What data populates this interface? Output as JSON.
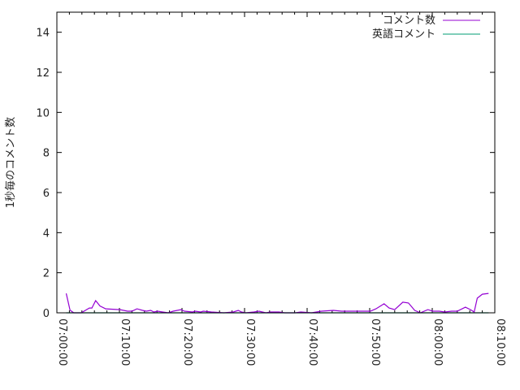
{
  "chart_data": {
    "type": "line",
    "title": "",
    "xlabel": "",
    "ylabel": "1秒毎のコメント数",
    "xlim": [
      "07:00:00",
      "08:10:00"
    ],
    "ylim": [
      0,
      15
    ],
    "x_ticks": [
      "07:00:00",
      "07:10:00",
      "07:20:00",
      "07:30:00",
      "07:40:00",
      "07:50:00",
      "08:00:00",
      "08:10:00"
    ],
    "y_ticks": [
      0,
      2,
      4,
      6,
      8,
      10,
      12,
      14
    ],
    "y_tick_labels": [
      "0",
      "2",
      "4",
      "6",
      "8",
      "10",
      "12",
      "14"
    ],
    "grid": false,
    "legend_position": "top-right",
    "x": [
      "07:01:30",
      "07:02:06",
      "07:02:42",
      "07:03:54",
      "07:05:12",
      "07:05:36",
      "07:06:12",
      "07:06:54",
      "07:07:48",
      "07:10:06",
      "07:11:18",
      "07:12:00",
      "07:12:48",
      "07:13:42",
      "07:14:18",
      "07:15:00",
      "07:15:30",
      "07:16:06",
      "07:16:54",
      "07:17:48",
      "07:18:36",
      "07:19:48",
      "07:20:24",
      "07:21:42",
      "07:22:06",
      "07:23:00",
      "07:23:24",
      "07:24:42",
      "07:26:42",
      "07:28:12",
      "07:29:00",
      "07:29:30",
      "07:30:12",
      "07:31:30",
      "07:32:18",
      "07:33:24",
      "07:34:12",
      "07:35:30",
      "07:36:24",
      "07:38:06",
      "07:39:00",
      "07:40:42",
      "07:42:18",
      "07:44:12",
      "07:45:30",
      "07:46:48",
      "07:47:30",
      "07:50:06",
      "07:51:00",
      "07:52:18",
      "07:53:06",
      "07:54:00",
      "07:55:18",
      "07:56:12",
      "07:57:12",
      "07:58:06",
      "07:59:18",
      "08:00:06",
      "08:01:06",
      "08:02:00",
      "08:03:06",
      "08:04:00",
      "08:05:18",
      "08:06:06",
      "08:06:42",
      "08:07:12",
      "08:08:00",
      "08:09:00"
    ],
    "series": [
      {
        "name": "コメント数",
        "color": "#9400d3",
        "values": [
          0.97,
          0.13,
          0,
          0,
          0.24,
          0.24,
          0.61,
          0.34,
          0.2,
          0.16,
          0.08,
          0.08,
          0.2,
          0.12,
          0.08,
          0.12,
          0.04,
          0.08,
          0.04,
          0,
          0.08,
          0.16,
          0.08,
          0.04,
          0.08,
          0.04,
          0.08,
          0.04,
          0,
          0.04,
          0.12,
          0.04,
          0,
          0.04,
          0.08,
          0,
          0.04,
          0.04,
          0,
          0,
          0.04,
          0,
          0.08,
          0.12,
          0.08,
          0.08,
          0.08,
          0.08,
          0.2,
          0.45,
          0.24,
          0.16,
          0.53,
          0.49,
          0.12,
          0,
          0.16,
          0.08,
          0.08,
          0.04,
          0.08,
          0.08,
          0.28,
          0.16,
          0.04,
          0.73,
          0.93,
          0.97
        ]
      },
      {
        "name": "英語コメント",
        "color": "#009e73",
        "values": [
          0,
          0,
          0,
          0,
          0,
          0,
          0,
          0,
          0,
          0,
          0,
          0,
          0,
          0,
          0,
          0,
          0,
          0,
          0,
          0,
          0,
          0,
          0,
          0,
          0,
          0,
          0,
          0,
          0,
          0,
          0,
          0,
          0,
          0,
          0,
          0,
          0,
          0,
          0,
          0,
          0,
          0,
          0,
          0,
          0,
          0,
          0,
          0,
          0,
          0,
          0,
          0,
          0,
          0,
          0,
          0,
          0,
          0,
          0,
          0,
          0,
          0,
          0,
          0,
          0,
          0,
          0,
          0
        ]
      }
    ]
  }
}
